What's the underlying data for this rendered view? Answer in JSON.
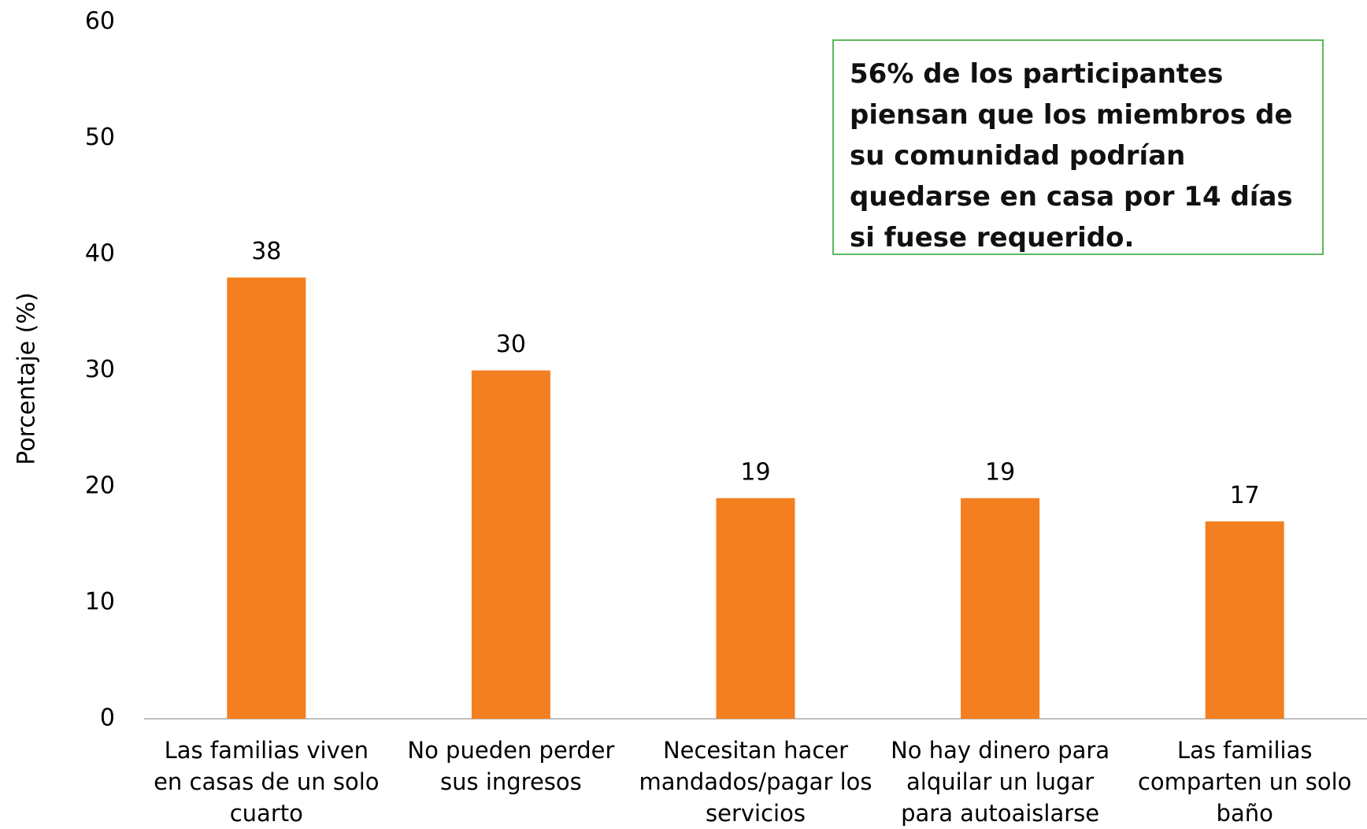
{
  "chart_data": {
    "type": "bar",
    "y_label": "Porcentaje (%)",
    "categories": [
      "Las familias viven en casas de un solo cuarto",
      "No pueden perder sus ingresos",
      "Necesitan hacer mandados/pagar los servicios",
      "No hay dinero para alquilar un lugar para autoaislarse",
      "Las familias comparten un solo baño"
    ],
    "values": [
      38,
      30,
      19,
      19,
      17
    ],
    "color": "#f47f20",
    "ylim": [
      0,
      60
    ],
    "yticks": [
      0,
      10,
      20,
      30,
      40,
      50,
      60
    ],
    "grid": false,
    "annotation": "56% de los participantes piensan que los miembros de su comunidad podrían quedarse en casa por 14 días si fuese requerido."
  }
}
